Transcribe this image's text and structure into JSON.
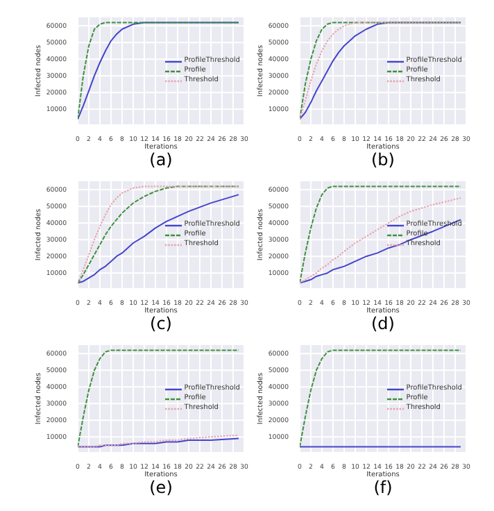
{
  "chart_data": [
    {
      "type": "line",
      "xlabel": "Iterations",
      "ylabel": "Infected nodes",
      "annotations": [
        "(a)"
      ],
      "x": [
        0,
        1,
        2,
        3,
        4,
        5,
        6,
        7,
        8,
        10,
        12,
        14,
        16,
        18,
        20,
        24,
        29
      ],
      "xlim": [
        0,
        30
      ],
      "xticks": [
        0,
        2,
        4,
        6,
        8,
        10,
        12,
        14,
        16,
        18,
        20,
        22,
        24,
        26,
        28,
        30
      ],
      "ylim": [
        500,
        65500
      ],
      "yticks": [
        10000,
        20000,
        30000,
        40000,
        50000,
        60000
      ],
      "grid": true,
      "legend": "right",
      "marker": "none",
      "series": [
        {
          "name": "ProfileThreshold",
          "color": "#4444cc",
          "line_style": "solid",
          "values": [
            4000,
            12000,
            21000,
            30000,
            38000,
            45000,
            51000,
            55000,
            58000,
            61000,
            62000,
            62000,
            62000,
            62000,
            62000,
            62000,
            62000
          ]
        },
        {
          "name": "Profile",
          "color": "#3f8f3f",
          "line_style": "dashed",
          "values": [
            4000,
            30000,
            48000,
            58000,
            61000,
            62000,
            62000,
            62000,
            62000,
            62000,
            62000,
            62000,
            62000,
            62000,
            62000,
            62000,
            62000
          ]
        },
        {
          "name": "Threshold",
          "color": "#e8a0a8",
          "line_style": "dotted",
          "values": [
            null,
            null,
            null,
            null,
            null,
            null,
            null,
            null,
            null,
            null,
            null,
            null,
            null,
            null,
            null,
            null,
            null
          ]
        }
      ]
    },
    {
      "type": "line",
      "xlabel": "Iterations",
      "ylabel": "Infected nodes",
      "annotations": [
        "(b)"
      ],
      "x": [
        0,
        1,
        2,
        3,
        4,
        5,
        6,
        7,
        8,
        10,
        12,
        14,
        16,
        18,
        20,
        24,
        29
      ],
      "xlim": [
        0,
        30
      ],
      "xticks": [
        0,
        2,
        4,
        6,
        8,
        10,
        12,
        14,
        16,
        18,
        20,
        22,
        24,
        26,
        28,
        30
      ],
      "ylim": [
        500,
        65500
      ],
      "yticks": [
        10000,
        20000,
        30000,
        40000,
        50000,
        60000
      ],
      "grid": true,
      "legend": "right",
      "marker": "none",
      "series": [
        {
          "name": "ProfileThreshold",
          "color": "#4444cc",
          "line_style": "solid",
          "values": [
            4000,
            8000,
            14000,
            21000,
            27000,
            33000,
            39000,
            44000,
            48000,
            54000,
            58000,
            61000,
            62000,
            62000,
            62000,
            62000,
            62000
          ]
        },
        {
          "name": "Profile",
          "color": "#3f8f3f",
          "line_style": "dashed",
          "values": [
            4000,
            25000,
            40000,
            51000,
            58000,
            61000,
            62000,
            62000,
            62000,
            62000,
            62000,
            62000,
            62000,
            62000,
            62000,
            62000,
            62000
          ]
        },
        {
          "name": "Threshold",
          "color": "#e8a0a8",
          "line_style": "dotted",
          "values": [
            4000,
            15000,
            27000,
            37000,
            45000,
            51000,
            55000,
            58000,
            60000,
            62000,
            62000,
            62000,
            62000,
            62000,
            62000,
            62000,
            62000
          ]
        }
      ]
    },
    {
      "type": "line",
      "xlabel": "Iterations",
      "ylabel": "Infected nodes",
      "annotations": [
        "(c)"
      ],
      "x": [
        0,
        1,
        2,
        3,
        4,
        5,
        6,
        7,
        8,
        10,
        12,
        14,
        16,
        18,
        20,
        24,
        29
      ],
      "xlim": [
        0,
        30
      ],
      "xticks": [
        0,
        2,
        4,
        6,
        8,
        10,
        12,
        14,
        16,
        18,
        20,
        22,
        24,
        26,
        28,
        30
      ],
      "ylim": [
        500,
        65500
      ],
      "yticks": [
        10000,
        20000,
        30000,
        40000,
        50000,
        60000
      ],
      "grid": true,
      "legend": "right",
      "marker": "none",
      "series": [
        {
          "name": "ProfileThreshold",
          "color": "#4444cc",
          "line_style": "solid",
          "values": [
            4000,
            5000,
            7000,
            9000,
            12000,
            14000,
            17000,
            20000,
            22000,
            28000,
            32000,
            37000,
            41000,
            44000,
            47000,
            52000,
            57000
          ]
        },
        {
          "name": "Profile",
          "color": "#3f8f3f",
          "line_style": "dashed",
          "values": [
            4000,
            9000,
            15000,
            21000,
            27000,
            33000,
            38000,
            42000,
            46000,
            52000,
            56000,
            59000,
            61000,
            62000,
            62000,
            62000,
            62000
          ]
        },
        {
          "name": "Threshold",
          "color": "#e8a0a8",
          "line_style": "dotted",
          "values": [
            4000,
            12000,
            21000,
            30000,
            38000,
            45000,
            51000,
            55000,
            58000,
            61000,
            62000,
            62000,
            62000,
            62000,
            62000,
            62000,
            62000
          ]
        }
      ]
    },
    {
      "type": "line",
      "xlabel": "Iterations",
      "ylabel": "Infected nodes",
      "annotations": [
        "(d)"
      ],
      "x": [
        0,
        1,
        2,
        3,
        4,
        5,
        6,
        7,
        8,
        10,
        12,
        14,
        16,
        18,
        20,
        24,
        29
      ],
      "xlim": [
        0,
        30
      ],
      "xticks": [
        0,
        2,
        4,
        6,
        8,
        10,
        12,
        14,
        16,
        18,
        20,
        22,
        24,
        26,
        28,
        30
      ],
      "ylim": [
        500,
        65500
      ],
      "yticks": [
        10000,
        20000,
        30000,
        40000,
        50000,
        60000
      ],
      "grid": true,
      "legend": "right",
      "marker": "none",
      "series": [
        {
          "name": "ProfileThreshold",
          "color": "#4444cc",
          "line_style": "solid",
          "values": [
            4000,
            5000,
            6000,
            8000,
            9000,
            10000,
            12000,
            13000,
            14000,
            17000,
            20000,
            22000,
            25000,
            27000,
            30000,
            35000,
            42000
          ]
        },
        {
          "name": "Profile",
          "color": "#3f8f3f",
          "line_style": "dashed",
          "values": [
            4000,
            22000,
            37000,
            49000,
            57000,
            61000,
            62000,
            62000,
            62000,
            62000,
            62000,
            62000,
            62000,
            62000,
            62000,
            62000,
            62000
          ]
        },
        {
          "name": "Threshold",
          "color": "#e8a0a8",
          "line_style": "dotted",
          "values": [
            4000,
            6000,
            8000,
            10000,
            13000,
            15000,
            18000,
            20000,
            23000,
            28000,
            32000,
            36000,
            40000,
            44000,
            47000,
            51000,
            55000
          ]
        }
      ]
    },
    {
      "type": "line",
      "xlabel": "Iterations",
      "ylabel": "Infected nodes",
      "annotations": [
        "(e)"
      ],
      "x": [
        0,
        1,
        2,
        3,
        4,
        5,
        6,
        7,
        8,
        10,
        12,
        14,
        16,
        18,
        20,
        24,
        29
      ],
      "xlim": [
        0,
        30
      ],
      "xticks": [
        0,
        2,
        4,
        6,
        8,
        10,
        12,
        14,
        16,
        18,
        20,
        22,
        24,
        26,
        28,
        30
      ],
      "ylim": [
        500,
        65500
      ],
      "yticks": [
        10000,
        20000,
        30000,
        40000,
        50000,
        60000
      ],
      "grid": true,
      "legend": "right",
      "marker": "none",
      "series": [
        {
          "name": "ProfileThreshold",
          "color": "#4444cc",
          "line_style": "solid",
          "values": [
            4000,
            4000,
            4000,
            4000,
            4000,
            5000,
            5000,
            5000,
            5000,
            6000,
            6000,
            6000,
            7000,
            7000,
            8000,
            8000,
            9000
          ]
        },
        {
          "name": "Profile",
          "color": "#3f8f3f",
          "line_style": "dashed",
          "values": [
            4000,
            22000,
            38000,
            50000,
            57000,
            61000,
            62000,
            62000,
            62000,
            62000,
            62000,
            62000,
            62000,
            62000,
            62000,
            62000,
            62000
          ]
        },
        {
          "name": "Threshold",
          "color": "#e8a0a8",
          "line_style": "dotted",
          "values": [
            4000,
            4000,
            4000,
            4000,
            5000,
            5000,
            5000,
            5000,
            6000,
            6000,
            7000,
            7000,
            8000,
            8000,
            9000,
            10000,
            11000
          ]
        }
      ]
    },
    {
      "type": "line",
      "xlabel": "Iterations",
      "ylabel": "Infected nodes",
      "annotations": [
        "(f)"
      ],
      "x": [
        0,
        1,
        2,
        3,
        4,
        5,
        6,
        7,
        8,
        10,
        12,
        14,
        16,
        18,
        20,
        24,
        29
      ],
      "xlim": [
        0,
        30
      ],
      "xticks": [
        0,
        2,
        4,
        6,
        8,
        10,
        12,
        14,
        16,
        18,
        20,
        22,
        24,
        26,
        28,
        30
      ],
      "ylim": [
        500,
        65500
      ],
      "yticks": [
        10000,
        20000,
        30000,
        40000,
        50000,
        60000
      ],
      "grid": true,
      "legend": "right",
      "marker": "none",
      "series": [
        {
          "name": "ProfileThreshold",
          "color": "#4444cc",
          "line_style": "solid",
          "values": [
            4000,
            4000,
            4000,
            4000,
            4000,
            4000,
            4000,
            4000,
            4000,
            4000,
            4000,
            4000,
            4000,
            4000,
            4000,
            4000,
            4000
          ]
        },
        {
          "name": "Profile",
          "color": "#3f8f3f",
          "line_style": "dashed",
          "values": [
            4000,
            22000,
            38000,
            50000,
            57000,
            61000,
            62000,
            62000,
            62000,
            62000,
            62000,
            62000,
            62000,
            62000,
            62000,
            62000,
            62000
          ]
        },
        {
          "name": "Threshold",
          "color": "#e8a0a8",
          "line_style": "dotted",
          "values": [
            null,
            null,
            null,
            null,
            null,
            null,
            null,
            null,
            null,
            null,
            null,
            null,
            null,
            null,
            null,
            null,
            null
          ]
        }
      ]
    }
  ]
}
